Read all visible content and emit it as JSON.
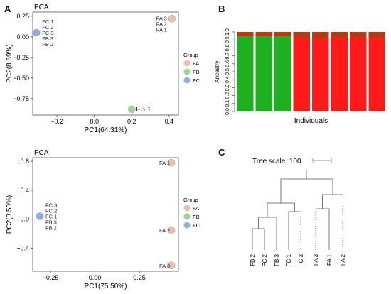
{
  "panels": {
    "a": {
      "letter": "A"
    },
    "b": {
      "letter": "B"
    },
    "c": {
      "letter": "C"
    }
  },
  "colors": {
    "FA": "#e8b4a0",
    "FB": "#8fc98a",
    "FC": "#7f9fd6",
    "green": "#1fb01f",
    "red": "#ff1a1a",
    "darkred": "#b83a14"
  },
  "chart_data": [
    {
      "id": "pca1",
      "type": "scatter",
      "title": "PCA",
      "xlabel": "PC1(64.31%)",
      "ylabel": "PC2(8.69%)",
      "xlim": [
        -0.33,
        0.45
      ],
      "ylim": [
        -0.95,
        0.3
      ],
      "xticks": [
        -0.2,
        0.0,
        0.2,
        0.4
      ],
      "xtick_labels": [
        "−0.2",
        "0.0",
        "0.2",
        "0.4"
      ],
      "yticks": [
        0.25,
        0.0,
        -0.25,
        -0.5,
        -0.75
      ],
      "ytick_labels": [
        "0.25",
        "0.00",
        "−0.25",
        "−0.50",
        "−0.75"
      ],
      "legend": {
        "title": "Group",
        "entries": [
          "FA",
          "FB",
          "FC"
        ],
        "placement": "right"
      },
      "points": [
        {
          "group": "FC",
          "x": -0.31,
          "y": 0.05,
          "labels": [
            "FC 1",
            "FC 2",
            "FC 3",
            "FB 3",
            "FB 2"
          ]
        },
        {
          "group": "FA",
          "x": 0.415,
          "y": 0.22,
          "labels": [
            "FA 3",
            "FA 2",
            "FA 1"
          ]
        },
        {
          "group": "FB",
          "x": 0.2,
          "y": -0.88,
          "labels": [
            "FB 1"
          ]
        }
      ]
    },
    {
      "id": "pca2",
      "type": "scatter",
      "title": "PCA",
      "xlabel": "PC1(75.50%)",
      "ylabel": "PC2(3.50%)",
      "xlim": [
        -0.35,
        0.47
      ],
      "ylim": [
        -0.72,
        0.85
      ],
      "xticks": [
        -0.25,
        0.0,
        0.25
      ],
      "xtick_labels": [
        "−0.25",
        "0.00",
        "0.25"
      ],
      "yticks": [
        0.8,
        0.4,
        0.0,
        -0.4
      ],
      "ytick_labels": [
        "0.8",
        "0.4",
        "0.0",
        "−0.4"
      ],
      "legend": {
        "title": "Group",
        "entries": [
          "FA",
          "FB",
          "FC"
        ],
        "placement": "right"
      },
      "points": [
        {
          "group": "FC",
          "x": -0.31,
          "y": 0.04,
          "labels": [
            "FC 3",
            "FC 2",
            "FC 1",
            "FB 3",
            "FB 2"
          ]
        },
        {
          "group": "FA",
          "x": 0.43,
          "y": 0.78,
          "labels": [
            "FA 1"
          ]
        },
        {
          "group": "FA",
          "x": 0.43,
          "y": -0.15,
          "labels": [
            "FA 2"
          ]
        },
        {
          "group": "FA",
          "x": 0.43,
          "y": -0.64,
          "labels": [
            "FA 3"
          ]
        }
      ]
    },
    {
      "id": "ancestry",
      "type": "bar",
      "xlabel": "Individuals",
      "ylabel": "Ancestry",
      "ylim": [
        0,
        1
      ],
      "yticks": [
        0.0,
        0.1,
        0.2,
        0.3,
        0.4,
        0.5,
        0.6,
        0.7,
        0.8,
        0.9,
        1.0
      ],
      "ytick_labels": [
        "0.0",
        "0.1",
        "0.2",
        "0.3",
        "0.4",
        "0.5",
        "0.6",
        "0.7",
        "0.8",
        "0.9",
        "1.0"
      ],
      "bars": [
        {
          "main": "green",
          "top": 0.06
        },
        {
          "main": "green",
          "top": 0.06
        },
        {
          "main": "green",
          "top": 0.06
        },
        {
          "main": "red",
          "top": 0.08
        },
        {
          "main": "red",
          "top": 0.08
        },
        {
          "main": "red",
          "top": 0.08
        },
        {
          "main": "red",
          "top": 0.08
        },
        {
          "main": "red",
          "top": 0.08
        }
      ]
    },
    {
      "id": "tree",
      "type": "tree",
      "title": "Tree scale: 100",
      "leaves": [
        "FB 2",
        "FC 2",
        "FB 3",
        "FC 1",
        "FC 3",
        "FA 3",
        "FA 1",
        "FA 2"
      ]
    }
  ]
}
